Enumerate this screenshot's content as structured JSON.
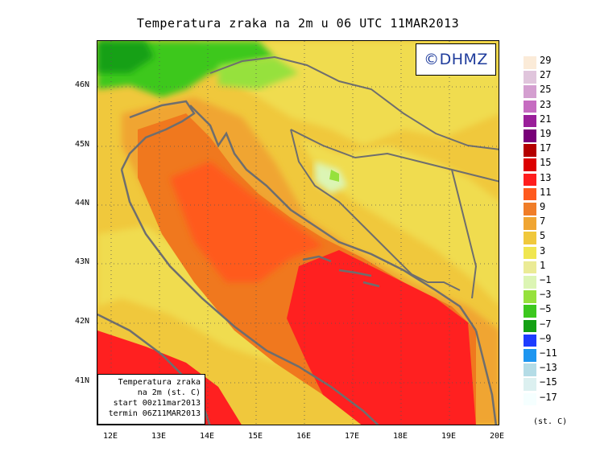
{
  "title": "Temperatura zraka na 2m u 06 UTC 11MAR2013",
  "logo_text": "©DHMZ",
  "info_box": {
    "line1": "Temperatura zraka",
    "line2": "na 2m (st. C)",
    "line3": "start 00z11mar2013",
    "line4": "termin 06Z11MAR2013"
  },
  "lat_labels": [
    "46N",
    "45N",
    "44N",
    "43N",
    "42N",
    "41N"
  ],
  "lon_labels": [
    "12E",
    "13E",
    "14E",
    "15E",
    "16E",
    "17E",
    "18E",
    "19E",
    "20E"
  ],
  "legend_unit": "(st. C)",
  "legend_labels": [
    "29",
    "27",
    "25",
    "23",
    "21",
    "19",
    "17",
    "15",
    "13",
    "11",
    "9",
    "7",
    "5",
    "3",
    "1",
    "−1",
    "−3",
    "−5",
    "−7",
    "−9",
    "−11",
    "−13",
    "−15",
    "−17"
  ],
  "legend_colors": [
    "#fbebd8",
    "#e0c5dc",
    "#d49fd0",
    "#c66cc1",
    "#9a1f9a",
    "#780078",
    "#b40000",
    "#dc0000",
    "#ff1e1e",
    "#ff5a1e",
    "#f07d28",
    "#f0a532",
    "#f0c83c",
    "#f0e650",
    "#ebeb96",
    "#dcf5b4",
    "#96e13c",
    "#3cc81e",
    "#14a014",
    "#1e3cff",
    "#1e96f0",
    "#b4dce6",
    "#dcf0f0",
    "#f5ffff"
  ],
  "colors": {
    "coastline": "#6e6e6e",
    "sea_inner": "#f0781e",
    "sea_south": "#ff2020",
    "land_warm": "#f0b43c",
    "land_mild": "#f0dc50",
    "land_cool": "#e8ec98",
    "alpine": "#3cc81e"
  }
}
